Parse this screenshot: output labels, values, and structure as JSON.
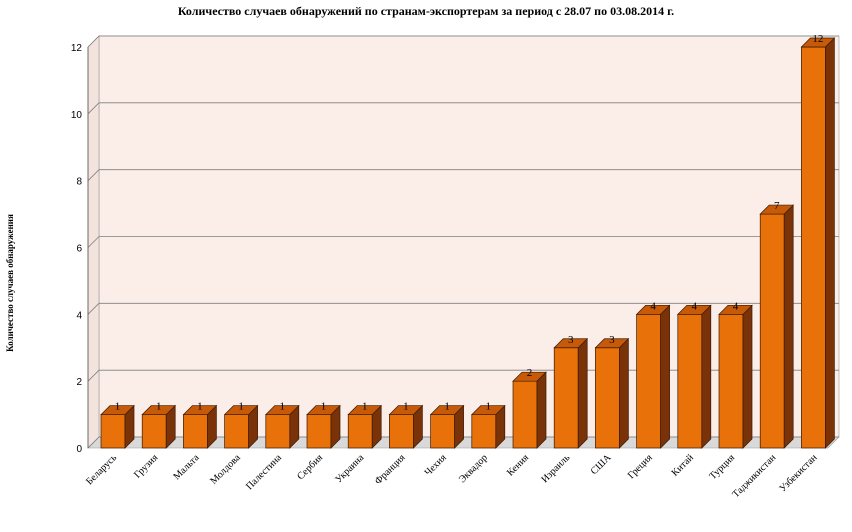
{
  "chart_data": {
    "type": "bar",
    "title": "Количество случаев обнаружений по странам-экспортерам за период с 28.07 по 03.08.2014 г.",
    "xlabel": "",
    "ylabel": "Количество случаев обнаружения",
    "categories": [
      "Беларусь",
      "Грузия",
      "Мальта",
      "Молдова",
      "Палестина",
      "Сербия",
      "Украина",
      "Франция",
      "Чехия",
      "Эквадор",
      "Кения",
      "Израиль",
      "США",
      "Греция",
      "Китай",
      "Турция",
      "Таджикистан",
      "Узбекистан"
    ],
    "values": [
      1,
      1,
      1,
      1,
      1,
      1,
      1,
      1,
      1,
      1,
      2,
      3,
      3,
      4,
      4,
      4,
      7,
      12
    ],
    "ylim": [
      0,
      12
    ],
    "yticks": [
      0,
      2,
      4,
      6,
      8,
      10,
      12
    ],
    "grid": true,
    "colors": {
      "bar_front": "#e8710a",
      "bar_side": "#7a3208",
      "bar_top": "#c65a08",
      "back_wall": "#fbeee9",
      "floor": "#d9d9d9",
      "gridline": "#7f7f7f"
    }
  }
}
